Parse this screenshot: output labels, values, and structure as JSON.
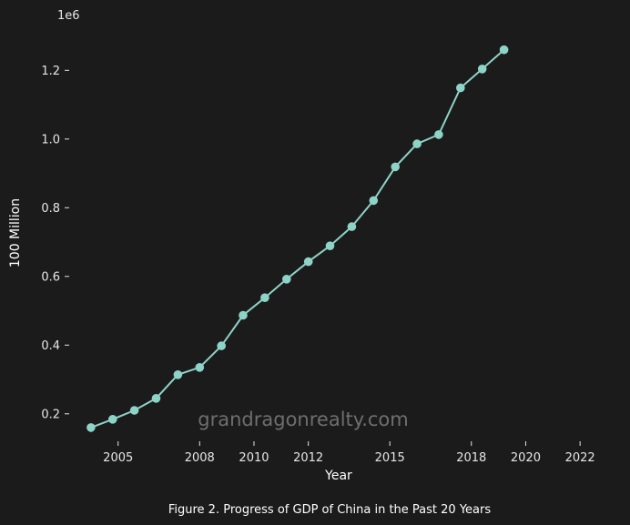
{
  "chart_data": {
    "type": "line",
    "title": "",
    "caption": "Figure 2. Progress of GDP of China in the Past 20 Years",
    "xlabel": "Year",
    "ylabel": "100 Million",
    "y_offset_text": "1e6",
    "watermark": "grandragonrealty.com",
    "color": "#8dd3c7",
    "background": "#1b1b1b",
    "grid": false,
    "xlim": [
      2003.2,
      2023.0
    ],
    "ylim": [
      0.12,
      1.32
    ],
    "x_ticks": [
      2005,
      2008,
      2010,
      2012,
      2015,
      2018,
      2020,
      2022
    ],
    "x_tick_labels": [
      "2005",
      "2008",
      "2010",
      "2012",
      "2015",
      "2018",
      "2020",
      "2022"
    ],
    "y_ticks": [
      0.2,
      0.4,
      0.6,
      0.8,
      1.0,
      1.2
    ],
    "y_tick_labels": [
      "0.2",
      "0.4",
      "0.6",
      "0.8",
      "1.0",
      "1.2"
    ],
    "series": [
      {
        "x": [
          2004.0,
          2004.8,
          2005.6,
          2006.4,
          2007.2,
          2008.0,
          2008.8,
          2009.6,
          2010.4,
          2011.2,
          2012.0,
          2012.8,
          2013.6,
          2014.4,
          2015.2,
          2016.0,
          2016.8,
          2017.6,
          2018.4,
          2019.2,
          2020.0,
          2020.8
        ],
        "y": [
          0.16,
          0.184,
          0.21,
          0.245,
          0.314,
          0.335,
          0.398,
          0.487,
          0.538,
          0.592,
          0.643,
          0.689,
          0.745,
          0.821,
          0.919,
          0.986,
          1.013,
          1.149,
          1.204,
          1.26,
          null,
          null
        ]
      }
    ]
  }
}
